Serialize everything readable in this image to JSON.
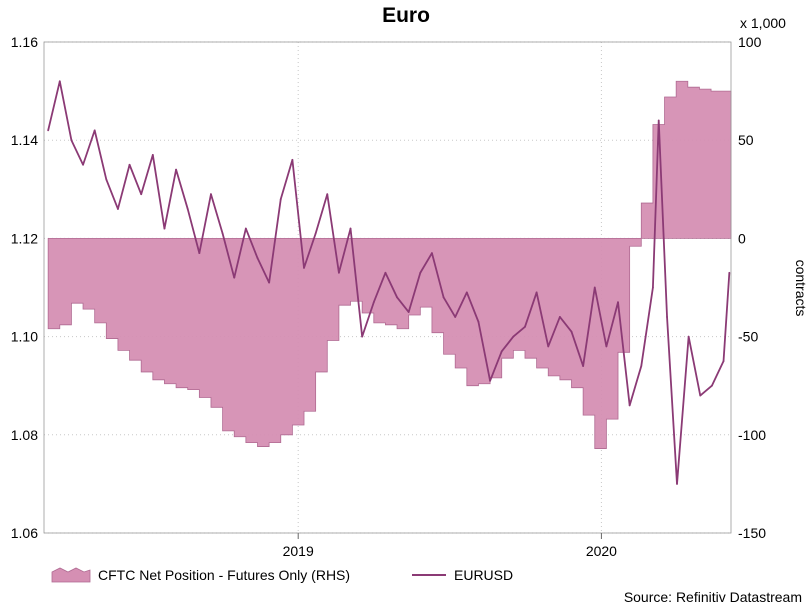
{
  "chart_data": {
    "type": "area+line",
    "title": "Euro",
    "x_ticks": [
      "2019",
      "2020"
    ],
    "left_axis": {
      "range": [
        1.06,
        1.16
      ],
      "ticks": [
        "1.06",
        "1.08",
        "1.10",
        "1.12",
        "1.14",
        "1.16"
      ]
    },
    "right_axis": {
      "range": [
        -150,
        100
      ],
      "ticks": [
        "-150",
        "-100",
        "-50",
        "0",
        "50",
        "100"
      ],
      "multiplier": "x 1,000",
      "label": "contracts"
    },
    "grid": "dotted",
    "legend_placement": "bottom",
    "source": "Source: Refinitiv Datastream",
    "colors": {
      "area_fill": "#d58fb3",
      "area_stroke": "#b06a92",
      "line": "#8b3a75"
    },
    "series": [
      {
        "name": "CFTC Net Position - Futures Only (RHS)",
        "kind": "area",
        "axis": "right",
        "x": [
          "2018-03-06",
          "2018-03-20",
          "2018-04-03",
          "2018-04-17",
          "2018-05-01",
          "2018-05-15",
          "2018-05-29",
          "2018-06-12",
          "2018-06-26",
          "2018-07-10",
          "2018-07-24",
          "2018-08-07",
          "2018-08-21",
          "2018-09-04",
          "2018-09-18",
          "2018-10-02",
          "2018-10-16",
          "2018-10-30",
          "2018-11-13",
          "2018-11-27",
          "2018-12-11",
          "2018-12-25",
          "2019-01-08",
          "2019-01-22",
          "2019-02-05",
          "2019-02-19",
          "2019-03-05",
          "2019-03-19",
          "2019-04-02",
          "2019-04-16",
          "2019-04-30",
          "2019-05-14",
          "2019-05-28",
          "2019-06-11",
          "2019-06-25",
          "2019-07-09",
          "2019-07-23",
          "2019-08-06",
          "2019-08-20",
          "2019-09-03",
          "2019-09-17",
          "2019-10-01",
          "2019-10-15",
          "2019-10-29",
          "2019-11-12",
          "2019-11-26",
          "2019-12-10",
          "2019-12-24",
          "2020-01-07",
          "2020-01-21",
          "2020-02-04",
          "2020-02-18",
          "2020-03-03",
          "2020-03-17",
          "2020-03-31",
          "2020-04-14",
          "2020-04-28",
          "2020-05-12"
        ],
        "values": [
          -46,
          -44,
          -33,
          -36,
          -43,
          -51,
          -57,
          -62,
          -68,
          -72,
          -74,
          -76,
          -77,
          -81,
          -86,
          -98,
          -101,
          -104,
          -106,
          -104,
          -100,
          -95,
          -88,
          -68,
          -52,
          -34,
          -32,
          -38,
          -43,
          -44,
          -46,
          -39,
          -35,
          -48,
          -59,
          -66,
          -75,
          -74,
          -71,
          -61,
          -57,
          -61,
          -66,
          -70,
          -72,
          -76,
          -90,
          -107,
          -92,
          -58,
          -4,
          18,
          58,
          72,
          80,
          77,
          76,
          75
        ]
      },
      {
        "name": "EURUSD",
        "kind": "line",
        "axis": "left",
        "x": [
          "2018-03-06",
          "2018-03-20",
          "2018-04-03",
          "2018-04-17",
          "2018-05-01",
          "2018-05-15",
          "2018-05-29",
          "2018-06-12",
          "2018-06-26",
          "2018-07-10",
          "2018-07-24",
          "2018-08-07",
          "2018-08-21",
          "2018-09-04",
          "2018-09-18",
          "2018-10-02",
          "2018-10-16",
          "2018-10-30",
          "2018-11-13",
          "2018-11-27",
          "2018-12-11",
          "2018-12-25",
          "2019-01-08",
          "2019-01-22",
          "2019-02-05",
          "2019-02-19",
          "2019-03-05",
          "2019-03-19",
          "2019-04-02",
          "2019-04-16",
          "2019-04-30",
          "2019-05-14",
          "2019-05-28",
          "2019-06-11",
          "2019-06-25",
          "2019-07-09",
          "2019-07-23",
          "2019-08-06",
          "2019-08-20",
          "2019-09-03",
          "2019-09-17",
          "2019-10-01",
          "2019-10-15",
          "2019-10-29",
          "2019-11-12",
          "2019-11-26",
          "2019-12-10",
          "2019-12-24",
          "2020-01-07",
          "2020-01-21",
          "2020-02-04",
          "2020-02-18",
          "2020-03-03",
          "2020-03-10",
          "2020-03-20",
          "2020-04-01",
          "2020-04-15",
          "2020-04-29",
          "2020-05-13",
          "2020-05-27",
          "2020-06-03"
        ],
        "values": [
          1.142,
          1.152,
          1.14,
          1.135,
          1.142,
          1.132,
          1.126,
          1.135,
          1.129,
          1.137,
          1.122,
          1.134,
          1.126,
          1.117,
          1.129,
          1.121,
          1.112,
          1.122,
          1.116,
          1.111,
          1.128,
          1.136,
          1.114,
          1.121,
          1.129,
          1.113,
          1.122,
          1.1,
          1.107,
          1.113,
          1.108,
          1.105,
          1.113,
          1.117,
          1.108,
          1.104,
          1.109,
          1.103,
          1.091,
          1.097,
          1.1,
          1.102,
          1.109,
          1.098,
          1.104,
          1.101,
          1.094,
          1.11,
          1.098,
          1.107,
          1.086,
          1.094,
          1.11,
          1.144,
          1.104,
          1.07,
          1.1,
          1.088,
          1.09,
          1.095,
          1.113
        ]
      }
    ]
  }
}
